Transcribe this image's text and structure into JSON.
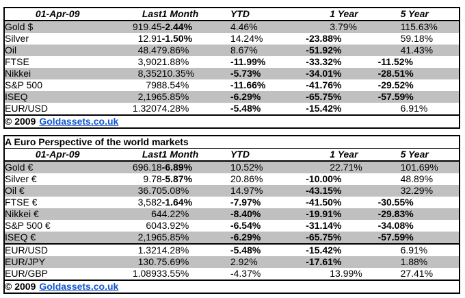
{
  "colors": {
    "negative": "#FF0000",
    "link": "#1155CC",
    "band": "#C0C0C0",
    "border": "#000000"
  },
  "tables": {
    "usd": {
      "date_header": "01-Apr-09",
      "columns": [
        "Last",
        "1 Month",
        "YTD",
        "1 Year",
        "5 Year"
      ],
      "row_groups": [
        [
          {
            "name": "Gold $",
            "values": [
              "919.45",
              "-2.44%",
              "4.46%",
              "3.79%",
              "115.63%"
            ]
          },
          {
            "name": "Silver",
            "values": [
              "12.91",
              "-1.50%",
              "14.24%",
              "-23.88%",
              "59.18%"
            ]
          },
          {
            "name": "Oil",
            "values": [
              "48.47",
              "9.86%",
              "8.67%",
              "-51.92%",
              "41.43%"
            ]
          },
          {
            "name": "FTSE",
            "values": [
              "3,902",
              "1.88%",
              "-11.99%",
              "-33.32%",
              "-11.52%"
            ]
          },
          {
            "name": "Nikkei",
            "values": [
              "8,352",
              "10.35%",
              "-5.73%",
              "-34.01%",
              "-28.51%"
            ]
          },
          {
            "name": "S&P 500",
            "values": [
              "798",
              "8.54%",
              "-11.66%",
              "-41.76%",
              "-29.52%"
            ]
          },
          {
            "name": "ISEQ",
            "values": [
              "2,196",
              "5.85%",
              "-6.29%",
              "-65.75%",
              "-57.59%"
            ]
          },
          {
            "name": "EUR/USD",
            "values": [
              "1.3207",
              "4.28%",
              "-5.48%",
              "-15.42%",
              "6.91%"
            ]
          }
        ]
      ],
      "footer": {
        "copyright": "© 2009",
        "link_text": "Goldassets.co.uk"
      }
    },
    "euro": {
      "title": "A Euro Perspective of the world markets",
      "date_header": "01-Apr-09",
      "columns": [
        "Last",
        "1 Month",
        "YTD",
        "1 Year",
        "5 Year"
      ],
      "row_groups": [
        [
          {
            "name": "Gold €",
            "values": [
              "696.18",
              "-6.89%",
              "10.52%",
              "22.71%",
              "101.69%"
            ]
          },
          {
            "name": "Silver €",
            "values": [
              "9.78",
              "-5.87%",
              "20.86%",
              "-10.00%",
              "48.89%"
            ]
          },
          {
            "name": "Oil €",
            "values": [
              "36.70",
              "5.08%",
              "14.97%",
              "-43.15%",
              "32.29%"
            ]
          },
          {
            "name": "FTSE €",
            "values": [
              "3,582",
              "-1.64%",
              "-7.97%",
              "-41.50%",
              "-30.55%"
            ]
          },
          {
            "name": "Nikkei €",
            "values": [
              "64",
              "4.22%",
              "-8.40%",
              "-19.91%",
              "-29.83%"
            ]
          },
          {
            "name": "S&P 500 €",
            "values": [
              "604",
              "3.92%",
              "-6.54%",
              "-31.14%",
              "-34.08%"
            ]
          },
          {
            "name": "ISEQ €",
            "values": [
              "2,196",
              "5.85%",
              "-6.29%",
              "-65.75%",
              "-57.59%"
            ]
          }
        ],
        [
          {
            "name": "EUR/USD",
            "values": [
              "1.321",
              "4.28%",
              "-5.48%",
              "-15.42%",
              "6.91%"
            ]
          },
          {
            "name": "EUR/JPY",
            "values": [
              "130.7",
              "5.69%",
              "2.92%",
              "-17.61%",
              "1.88%"
            ]
          },
          {
            "name": "EUR/GBP",
            "values": [
              "1.0893",
              "3.55%",
              "-4.37%",
              "13.99%",
              "27.41%"
            ],
            "plain_black": [
              2
            ]
          }
        ]
      ],
      "footer": {
        "copyright": "© 2009",
        "link_text": "Goldassets.co.uk"
      }
    }
  }
}
